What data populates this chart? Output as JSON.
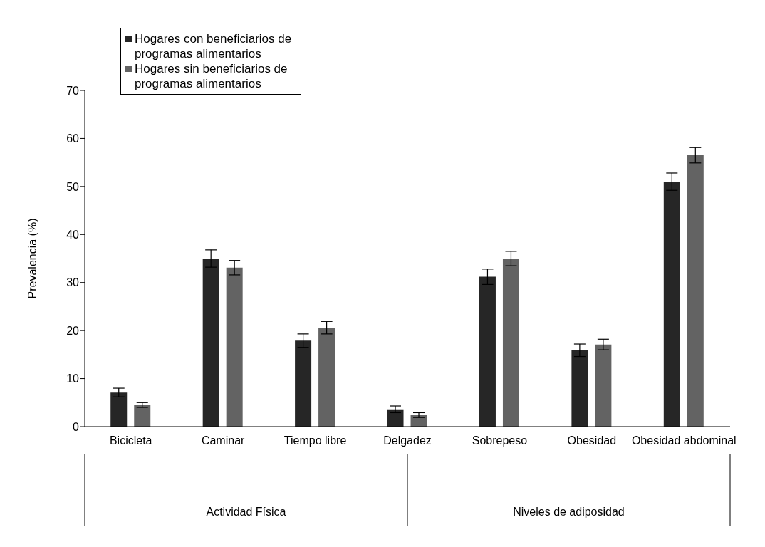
{
  "chart_data": {
    "type": "bar",
    "ylabel": "Prevalencia (%)",
    "categories": [
      "Bicicleta",
      "Caminar",
      "Tiempo libre",
      "Delgadez",
      "Sobrepeso",
      "Obesidad",
      "Obesidad abdominal"
    ],
    "series": [
      {
        "name": "Hogares con beneficiarios de programas alimentarios",
        "color": "#262626",
        "values": [
          7.1,
          35.0,
          17.9,
          3.6,
          31.2,
          15.9,
          51.0
        ],
        "errors": [
          0.9,
          1.8,
          1.4,
          0.7,
          1.6,
          1.3,
          1.8
        ]
      },
      {
        "name": "Hogares sin beneficiarios de programas alimentarios",
        "color": "#636363",
        "values": [
          4.5,
          33.1,
          20.6,
          2.4,
          35.0,
          17.1,
          56.5
        ],
        "errors": [
          0.5,
          1.5,
          1.3,
          0.5,
          1.5,
          1.1,
          1.6
        ]
      }
    ],
    "ylim": [
      0,
      70
    ],
    "yticks": [
      0,
      10,
      20,
      30,
      40,
      50,
      60,
      70
    ],
    "grid": false,
    "legend": "top left",
    "annotations": [
      "Actividad Física",
      "Niveles de adiposidad"
    ]
  }
}
